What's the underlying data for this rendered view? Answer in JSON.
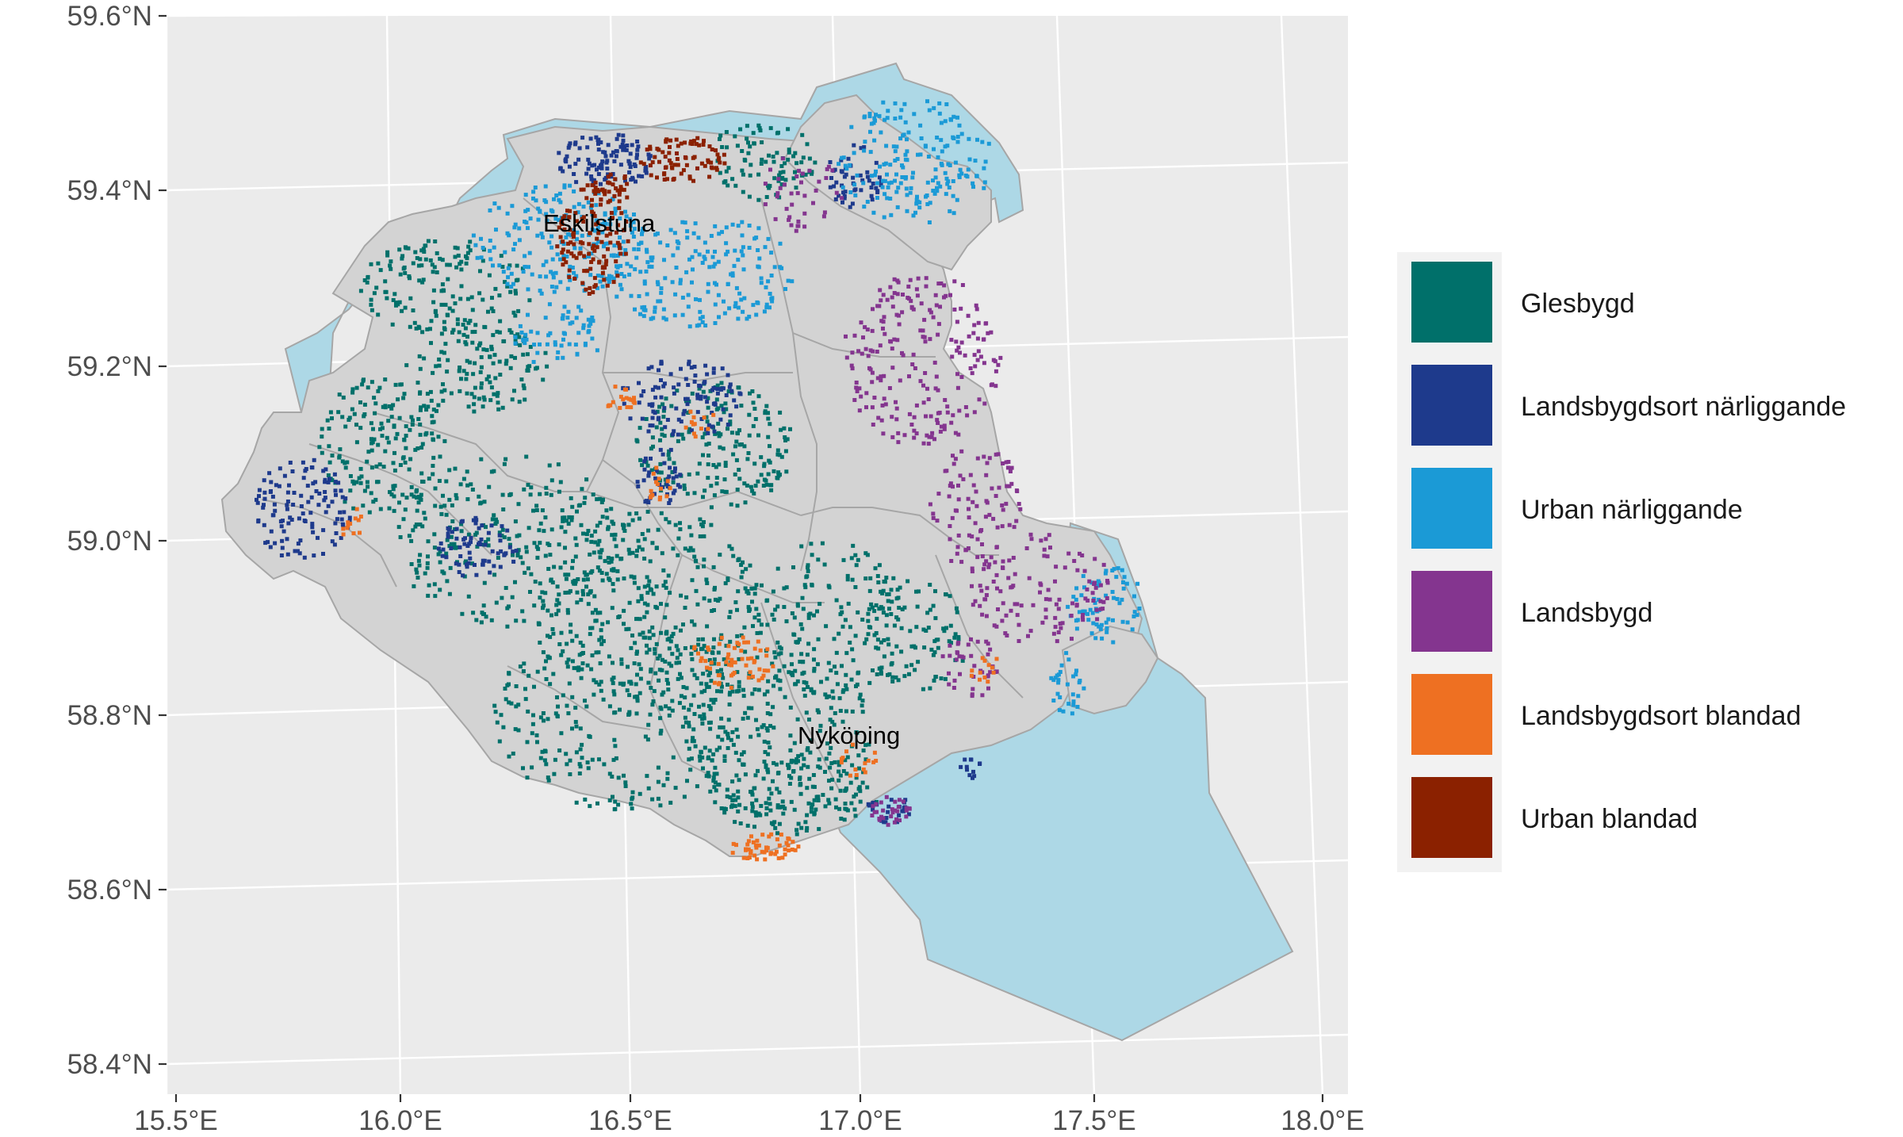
{
  "axes": {
    "y_ticks": [
      "59.6°N",
      "59.4°N",
      "59.2°N",
      "59.0°N",
      "58.8°N",
      "58.6°N",
      "58.4°N"
    ],
    "x_ticks": [
      "15.5°E",
      "16.0°E",
      "16.5°E",
      "17.0°E",
      "17.5°E",
      "18.0°E"
    ]
  },
  "legend": {
    "items": [
      {
        "label": "Glesbygd",
        "color": "#00706a"
      },
      {
        "label": "Landsbygdsort närliggande",
        "color": "#1e3a8c"
      },
      {
        "label": "Urban närliggande",
        "color": "#1b9ad6"
      },
      {
        "label": "Landsbygd",
        "color": "#84358f"
      },
      {
        "label": "Landsbygdsort blandad",
        "color": "#ee7022"
      },
      {
        "label": "Urban blandad",
        "color": "#8b2100"
      }
    ]
  },
  "cities": [
    {
      "name": "Eskilstuna",
      "lon": 16.51,
      "lat": 59.37
    },
    {
      "name": "Nyköping",
      "lon": 17.01,
      "lat": 58.76
    }
  ],
  "colors": {
    "panel_background": "#ebebeb",
    "land": "#d3d3d3",
    "water": "#add8e6",
    "boundary": "#a6a6a6"
  }
}
